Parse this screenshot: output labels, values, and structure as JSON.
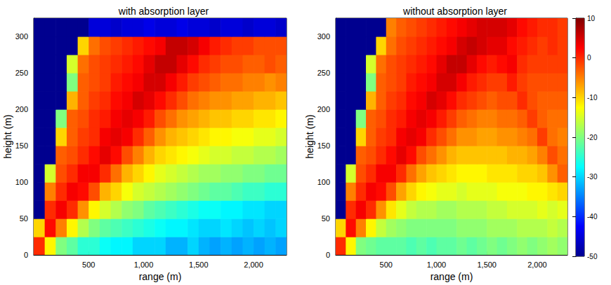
{
  "chart_data": [
    {
      "type": "heatmap",
      "title": "with absorption layer",
      "xlabel": "range (m)",
      "ylabel": "height (m)",
      "x": [
        50,
        150,
        250,
        350,
        450,
        550,
        650,
        750,
        850,
        950,
        1050,
        1150,
        1250,
        1350,
        1450,
        1550,
        1650,
        1750,
        1850,
        1950,
        2050,
        2150,
        2250
      ],
      "y": [
        12.5,
        37.5,
        62.5,
        87.5,
        112.5,
        137.5,
        162.5,
        187.5,
        212.5,
        237.5,
        262.5,
        287.5,
        312.5
      ],
      "z": [
        [
          0,
          -12,
          -20,
          -22,
          -25,
          -25,
          -27,
          -28,
          -28,
          -30,
          -30,
          -30,
          -32,
          -32,
          -30,
          -32,
          -33,
          -32,
          -33,
          -32,
          -33,
          -32,
          -33
        ],
        [
          -10,
          2,
          -5,
          -12,
          -17,
          -20,
          -22,
          -23,
          -24,
          -25,
          -26,
          -27,
          -28,
          -28,
          -29,
          -30,
          -30,
          -29,
          -30,
          -31,
          -30,
          -31,
          -30
        ],
        [
          -50,
          0,
          3,
          0,
          -6,
          -12,
          -15,
          -17,
          -19,
          -20,
          -22,
          -23,
          -24,
          -25,
          -26,
          -27,
          -27,
          -28,
          -28,
          -29,
          -29,
          -30,
          -30
        ],
        [
          -50,
          -5,
          0,
          3,
          2,
          -2,
          -8,
          -10,
          -13,
          -15,
          -16,
          -17,
          -18,
          -19,
          -20,
          -21,
          -22,
          -22,
          -23,
          -24,
          -24,
          -25,
          -25
        ],
        [
          -50,
          -15,
          -2,
          0,
          3,
          3,
          0,
          -4,
          -8,
          -10,
          -12,
          -14,
          -15,
          -16,
          -17,
          -18,
          -18,
          -19,
          -19,
          -20,
          -20,
          -21,
          -21
        ],
        [
          -50,
          -50,
          -3,
          -2,
          0,
          2,
          4,
          2,
          -2,
          -5,
          -8,
          -10,
          -11,
          -12,
          -13,
          -14,
          -15,
          -15,
          -16,
          -16,
          -17,
          -17,
          -18
        ],
        [
          -50,
          -50,
          -10,
          -3,
          -1,
          0,
          3,
          4,
          3,
          0,
          -3,
          -6,
          -8,
          -9,
          -10,
          -11,
          -12,
          -12,
          -13,
          -13,
          -14,
          -14,
          -15
        ],
        [
          -50,
          -50,
          -20,
          -3,
          -2,
          0,
          1,
          3,
          4,
          3,
          1,
          -2,
          -4,
          -6,
          -7,
          -8,
          -9,
          -9,
          -10,
          -10,
          -11,
          -11,
          -12
        ],
        [
          -50,
          -50,
          -50,
          -8,
          -3,
          -1,
          0,
          2,
          3,
          5,
          4,
          2,
          0,
          -2,
          -4,
          -5,
          -6,
          -6,
          -7,
          -7,
          -8,
          -8,
          -9
        ],
        [
          -50,
          -50,
          -50,
          -20,
          -3,
          -2,
          -1,
          1,
          2,
          3,
          5,
          5,
          3,
          1,
          -1,
          -2,
          -3,
          -4,
          -4,
          -5,
          -5,
          -6,
          -5
        ],
        [
          -50,
          -50,
          -50,
          -15,
          -4,
          -2,
          -1,
          0,
          1,
          2,
          4,
          6,
          6,
          4,
          2,
          0,
          -1,
          -2,
          -2,
          -3,
          -3,
          -2,
          -3
        ],
        [
          -50,
          -50,
          -50,
          -50,
          -10,
          -4,
          -2,
          -1,
          0,
          1,
          2,
          3,
          6,
          6,
          5,
          3,
          1,
          0,
          -1,
          -1,
          -2,
          -2,
          -2
        ],
        [
          -50,
          -50,
          -50,
          -50,
          -50,
          -45,
          -45,
          -46,
          -45,
          -45,
          -44,
          -45,
          -45,
          -44,
          -45,
          -45,
          -46,
          -45,
          -45,
          -46,
          -45,
          -45,
          -46
        ]
      ],
      "zlim": [
        -50,
        10
      ],
      "xlim": [
        0,
        2300
      ],
      "ylim": [
        0,
        325
      ],
      "xticks": [
        500,
        1000,
        1500,
        2000
      ],
      "yticks": [
        0,
        50,
        100,
        150,
        200,
        250,
        300
      ],
      "grid": false
    },
    {
      "type": "heatmap",
      "title": "without absorption layer",
      "xlabel": "range (m)",
      "ylabel": "height (m)",
      "x": [
        50,
        150,
        250,
        350,
        450,
        550,
        650,
        750,
        850,
        950,
        1050,
        1150,
        1250,
        1350,
        1450,
        1550,
        1650,
        1750,
        1850,
        1950,
        2050,
        2150,
        2250
      ],
      "y": [
        12.5,
        37.5,
        62.5,
        87.5,
        112.5,
        137.5,
        162.5,
        187.5,
        212.5,
        237.5,
        262.5,
        287.5,
        312.5
      ],
      "z": [
        [
          0,
          -12,
          -20,
          -21,
          -22,
          -22,
          -22,
          -23,
          -22,
          -23,
          -22,
          -22,
          -21,
          -22,
          -21,
          -20,
          -21,
          -20,
          -19,
          -20,
          -19,
          -18,
          -19
        ],
        [
          -10,
          2,
          -5,
          -12,
          -16,
          -18,
          -19,
          -20,
          -20,
          -20,
          -20,
          -20,
          -19,
          -19,
          -19,
          -18,
          -18,
          -18,
          -17,
          -17,
          -17,
          -16,
          -17
        ],
        [
          -50,
          0,
          3,
          0,
          -6,
          -11,
          -14,
          -16,
          -17,
          -17,
          -18,
          -18,
          -17,
          -17,
          -17,
          -16,
          -16,
          -15,
          -15,
          -15,
          -14,
          -15,
          -14
        ],
        [
          -50,
          -5,
          0,
          3,
          2,
          -2,
          -7,
          -10,
          -12,
          -13,
          -14,
          -14,
          -15,
          -14,
          -14,
          -14,
          -13,
          -13,
          -13,
          -12,
          -12,
          -11,
          -10
        ],
        [
          -50,
          -15,
          -2,
          0,
          3,
          3,
          0,
          -4,
          -7,
          -9,
          -10,
          -11,
          -12,
          -12,
          -12,
          -11,
          -11,
          -11,
          -10,
          -10,
          -9,
          -6,
          -3
        ],
        [
          -50,
          -50,
          -3,
          -2,
          0,
          2,
          4,
          2,
          -2,
          -4,
          -6,
          -8,
          -9,
          -9,
          -9,
          -9,
          -9,
          -8,
          -8,
          -7,
          -5,
          -2,
          -4
        ],
        [
          -50,
          -50,
          -10,
          -3,
          -1,
          0,
          3,
          4,
          3,
          0,
          -2,
          -4,
          -6,
          -6,
          -7,
          -7,
          -6,
          -6,
          -5,
          -4,
          -1,
          -4,
          -5
        ],
        [
          -50,
          -50,
          -20,
          -3,
          -2,
          0,
          1,
          3,
          4,
          3,
          1,
          -1,
          -3,
          -4,
          -5,
          -5,
          -4,
          -4,
          -3,
          -1,
          -3,
          -4,
          -4
        ],
        [
          -50,
          -50,
          -50,
          -8,
          -3,
          -1,
          0,
          2,
          3,
          5,
          4,
          2,
          0,
          -1,
          -2,
          -3,
          -2,
          -2,
          0,
          -2,
          -3,
          -3,
          -3
        ],
        [
          -50,
          -50,
          -50,
          -20,
          -3,
          -2,
          -1,
          1,
          2,
          3,
          5,
          5,
          3,
          1,
          0,
          -1,
          -1,
          1,
          -1,
          -2,
          -2,
          -2,
          -2
        ],
        [
          -50,
          -50,
          -50,
          -15,
          -4,
          -2,
          -1,
          0,
          1,
          2,
          4,
          6,
          6,
          4,
          2,
          1,
          2,
          3,
          0,
          -1,
          -1,
          -1,
          -1
        ],
        [
          -50,
          -50,
          -50,
          -50,
          -10,
          -4,
          -2,
          -1,
          0,
          1,
          2,
          3,
          5,
          6,
          5,
          4,
          4,
          2,
          1,
          0,
          -1,
          0,
          -1
        ],
        [
          -50,
          -50,
          -50,
          -50,
          -50,
          -5,
          -3,
          -2,
          -1,
          0,
          1,
          2,
          3,
          4,
          5,
          5,
          5,
          4,
          2,
          1,
          0,
          0,
          -1
        ]
      ],
      "zlim": [
        -50,
        10
      ],
      "zticks": [
        -50,
        -40,
        -30,
        -20,
        -10,
        0,
        10
      ],
      "xlim": [
        0,
        2300
      ],
      "ylim": [
        0,
        325
      ],
      "xticks": [
        500,
        1000,
        1500,
        2000
      ],
      "yticks": [
        0,
        50,
        100,
        150,
        200,
        250,
        300
      ],
      "grid": false
    }
  ]
}
